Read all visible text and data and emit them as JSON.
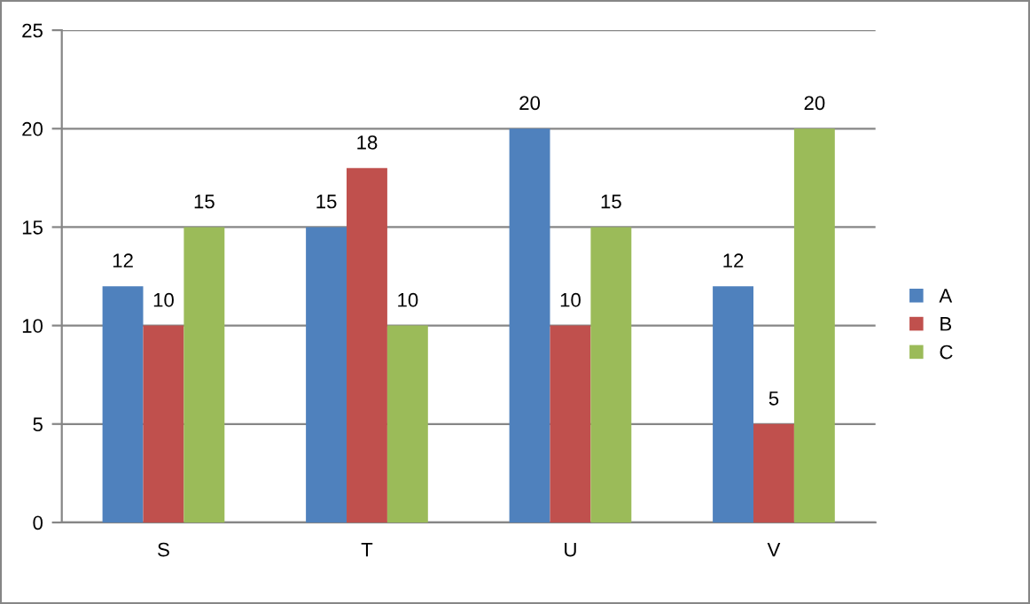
{
  "chart_data": {
    "type": "bar",
    "categories": [
      "S",
      "T",
      "U",
      "V"
    ],
    "series": [
      {
        "name": "A",
        "color": "#4f81bd",
        "values": [
          12,
          15,
          20,
          12
        ]
      },
      {
        "name": "B",
        "color": "#c0504d",
        "values": [
          10,
          18,
          10,
          5
        ]
      },
      {
        "name": "C",
        "color": "#9bbb59",
        "values": [
          15,
          10,
          15,
          20
        ]
      }
    ],
    "ylim": [
      0,
      25
    ],
    "yticks": [
      0,
      5,
      10,
      15,
      20,
      25
    ],
    "grid": "y",
    "legend": "right",
    "data_labels": true
  }
}
